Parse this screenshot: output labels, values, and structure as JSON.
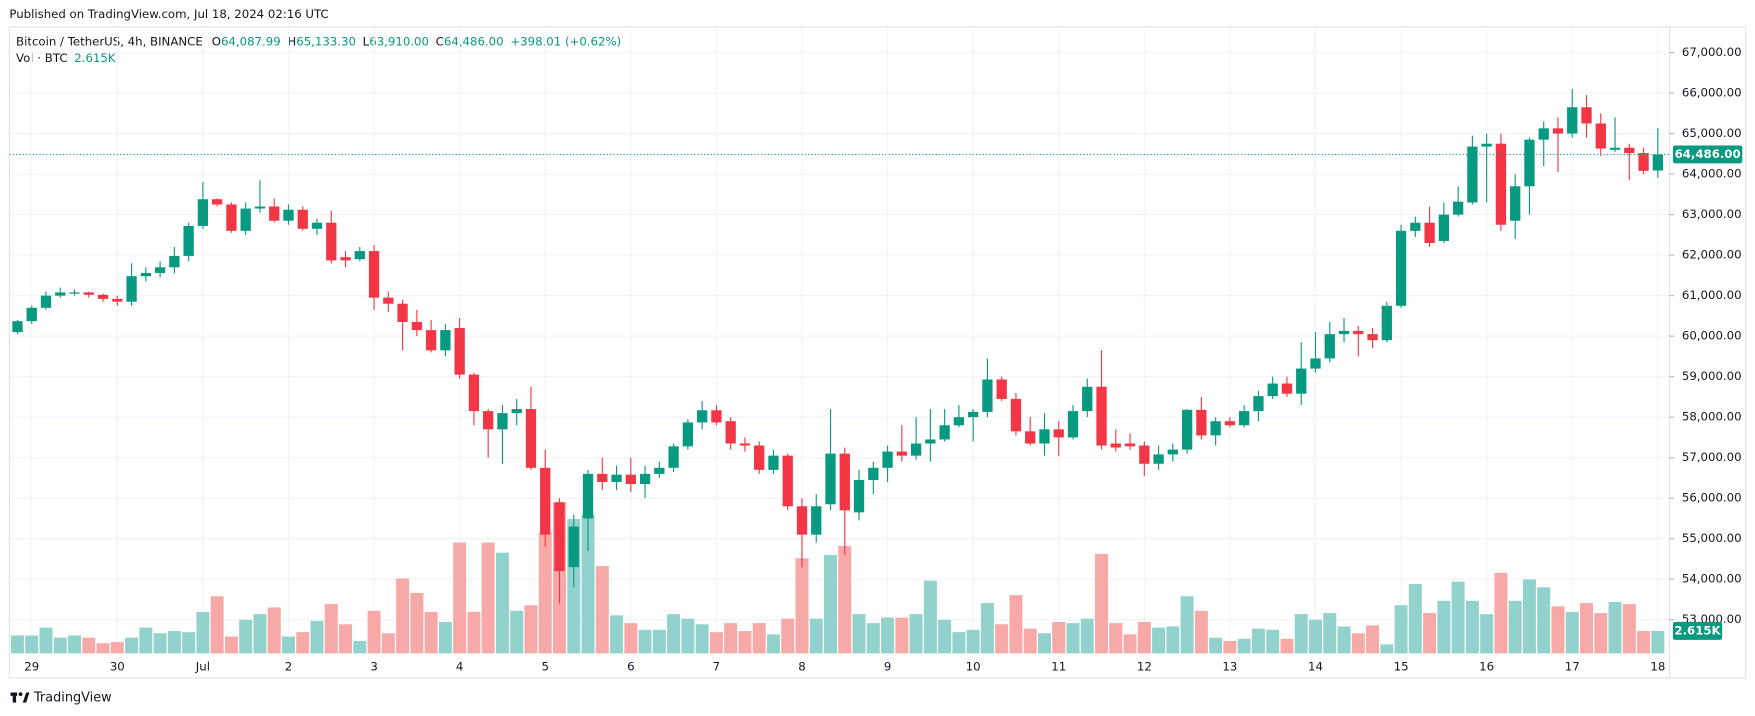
{
  "chart_data": {
    "type": "candlestick",
    "published": "Published on TradingView.com, Jul 18, 2024 02:16 UTC",
    "symbol": "Bitcoin / TetherUS, 4h, BINANCE",
    "ohlc_legend": [
      {
        "key": "O",
        "value": "64,087.99"
      },
      {
        "key": "H",
        "value": "65,133.30"
      },
      {
        "key": "L",
        "value": "63,910.00"
      },
      {
        "key": "C",
        "value": "64,486.00"
      }
    ],
    "change": "+398.01 (+0.62%)",
    "volume_title": "Vol · BTC",
    "volume_label": "2.615K",
    "last_price_label": "64,486.00",
    "brand": "TradingView",
    "categories": [
      null,
      "29",
      null,
      null,
      null,
      null,
      null,
      "30",
      null,
      null,
      null,
      null,
      null,
      "Jul",
      null,
      null,
      null,
      null,
      null,
      "2",
      null,
      null,
      null,
      null,
      null,
      "3",
      null,
      null,
      null,
      null,
      null,
      "4",
      null,
      null,
      null,
      null,
      null,
      "5",
      null,
      null,
      null,
      null,
      null,
      "6",
      null,
      null,
      null,
      null,
      null,
      "7",
      null,
      null,
      null,
      null,
      null,
      "8",
      null,
      null,
      null,
      null,
      null,
      "9",
      null,
      null,
      null,
      null,
      null,
      "10",
      null,
      null,
      null,
      null,
      null,
      "11",
      null,
      null,
      null,
      null,
      null,
      "12",
      null,
      null,
      null,
      null,
      null,
      "13",
      null,
      null,
      null,
      null,
      null,
      "14",
      null,
      null,
      null,
      null,
      null,
      "15",
      null,
      null,
      null,
      null,
      null,
      "16",
      null,
      null,
      null,
      null,
      null,
      "17",
      null,
      null,
      null,
      null,
      null,
      "18"
    ],
    "open": [
      60100,
      60370,
      60700,
      61000,
      61050,
      61080,
      61020,
      60920,
      60850,
      61480,
      61560,
      61700,
      61980,
      62720,
      63380,
      63250,
      62600,
      63150,
      63200,
      62850,
      63120,
      62650,
      62800,
      61950,
      61900,
      62100,
      60950,
      60800,
      60350,
      60150,
      59650,
      60200,
      59050,
      58150,
      57700,
      58100,
      58200,
      56750,
      55900,
      54300,
      55500,
      56600,
      56400,
      56580,
      56350,
      56600,
      56750,
      57280,
      57870,
      58170,
      57900,
      57350,
      57300,
      56700,
      57050,
      55800,
      55100,
      55850,
      57100,
      55650,
      56450,
      56750,
      57150,
      57050,
      57350,
      57450,
      57800,
      58000,
      58130,
      58930,
      58450,
      57650,
      57350,
      57700,
      57500,
      58150,
      58750,
      57350,
      57350,
      57300,
      56850,
      57080,
      57200,
      58180,
      57550,
      57900,
      57800,
      58150,
      58520,
      58830,
      58580,
      59200,
      59450,
      60050,
      60130,
      60050,
      59900,
      60750,
      62600,
      62800,
      62350,
      63000,
      63300,
      64680,
      64750,
      62850,
      63700,
      64850,
      65130,
      65000,
      65650,
      65250,
      64600,
      64650,
      64520,
      64088
    ],
    "high": [
      60400,
      60750,
      61100,
      61200,
      61150,
      61100,
      61050,
      61000,
      61800,
      61700,
      61850,
      62200,
      62800,
      63800,
      63400,
      63300,
      63300,
      63850,
      63400,
      63250,
      63200,
      62900,
      63100,
      62100,
      62200,
      62250,
      61100,
      60900,
      60650,
      60400,
      60300,
      60450,
      59100,
      58200,
      58300,
      58450,
      58750,
      57200,
      56000,
      55600,
      56700,
      57000,
      56800,
      57000,
      56800,
      56900,
      57350,
      57950,
      58400,
      58300,
      58000,
      57500,
      57400,
      57200,
      57100,
      56000,
      56100,
      58200,
      57250,
      56700,
      56900,
      57300,
      57800,
      58000,
      58200,
      58200,
      58300,
      58200,
      59450,
      59000,
      58600,
      58000,
      58100,
      57900,
      58300,
      58950,
      59650,
      57700,
      57600,
      57400,
      57300,
      57350,
      58200,
      58500,
      58000,
      58000,
      58300,
      58650,
      59000,
      59000,
      59850,
      60100,
      60350,
      60450,
      60250,
      60200,
      60850,
      62750,
      62950,
      63200,
      63300,
      63700,
      64950,
      65000,
      65000,
      64000,
      64900,
      65300,
      65400,
      66100,
      65950,
      65500,
      65400,
      64750,
      64650,
      65133
    ],
    "low": [
      60050,
      60300,
      60650,
      60950,
      61000,
      60950,
      60850,
      60750,
      60750,
      61350,
      61450,
      61550,
      61850,
      62650,
      63200,
      62550,
      62500,
      63050,
      62800,
      62750,
      62600,
      62500,
      61800,
      61700,
      61850,
      60650,
      60600,
      59650,
      60000,
      59600,
      59500,
      58950,
      57800,
      57000,
      56850,
      57800,
      56700,
      54800,
      53400,
      53800,
      54700,
      56200,
      56200,
      56150,
      56000,
      56500,
      56650,
      57200,
      57700,
      57800,
      57200,
      57150,
      56600,
      56600,
      55700,
      54300,
      54900,
      55700,
      54600,
      55450,
      56100,
      56400,
      56900,
      56950,
      56900,
      57400,
      57750,
      57400,
      58000,
      58400,
      57550,
      57300,
      57050,
      57050,
      57450,
      58000,
      57200,
      57150,
      57200,
      56550,
      56700,
      56900,
      57100,
      57450,
      57300,
      57750,
      57750,
      57900,
      58450,
      58500,
      58300,
      59100,
      59350,
      59850,
      59500,
      59700,
      59850,
      60700,
      62450,
      62200,
      62300,
      62950,
      63250,
      63300,
      62600,
      62400,
      63000,
      64200,
      64050,
      64900,
      64900,
      64450,
      64550,
      63850,
      64000,
      63910
    ],
    "close": [
      60370,
      60700,
      61000,
      61080,
      61080,
      61020,
      60920,
      60850,
      61480,
      61560,
      61700,
      61980,
      62720,
      63380,
      63250,
      62600,
      63150,
      63200,
      62850,
      63120,
      62650,
      62800,
      61870,
      61870,
      62100,
      60950,
      60800,
      60350,
      60150,
      59650,
      60150,
      59050,
      58150,
      57700,
      58100,
      58200,
      56750,
      55100,
      54200,
      55300,
      56600,
      56400,
      56580,
      56350,
      56600,
      56750,
      57280,
      57870,
      58170,
      57870,
      57350,
      57300,
      56700,
      57050,
      55800,
      55100,
      55800,
      57100,
      55700,
      56450,
      56750,
      57150,
      57050,
      57350,
      57450,
      57800,
      58000,
      58130,
      58930,
      58450,
      57650,
      57350,
      57700,
      57500,
      58150,
      58750,
      57300,
      57250,
      57280,
      56850,
      57080,
      57200,
      58180,
      57550,
      57900,
      57800,
      58150,
      58520,
      58830,
      58580,
      59200,
      59450,
      60050,
      60130,
      60050,
      59900,
      60750,
      62600,
      62800,
      62300,
      63000,
      63320,
      64680,
      64750,
      62750,
      63700,
      64850,
      65130,
      65000,
      65650,
      65250,
      64630,
      64650,
      64520,
      64080,
      64486
    ],
    "volume": [
      2090,
      2090,
      3010,
      1830,
      2090,
      1830,
      1180,
      1310,
      1830,
      3010,
      2350,
      2610,
      2480,
      4840,
      6670,
      1960,
      3920,
      4580,
      5360,
      1960,
      2480,
      3790,
      5750,
      3400,
      1440,
      4970,
      2350,
      8760,
      7060,
      4840,
      3660,
      12940,
      4840,
      12940,
      11760,
      4970,
      5620,
      14120,
      17650,
      15690,
      16210,
      10200,
      4440,
      3530,
      2750,
      2750,
      4580,
      4050,
      3400,
      2480,
      3530,
      2610,
      3530,
      2220,
      4050,
      11110,
      4050,
      11500,
      12550,
      4580,
      3530,
      4180,
      4180,
      4580,
      8500,
      3920,
      2480,
      2750,
      5880,
      3400,
      6800,
      2880,
      2350,
      3660,
      3530,
      4050,
      11630,
      3530,
      2220,
      3660,
      3010,
      3140,
      6670,
      4970,
      1830,
      1440,
      1700,
      2880,
      2750,
      1700,
      4580,
      3920,
      4710,
      3140,
      2350,
      3270,
      1050,
      5620,
      8100,
      4710,
      6140,
      8370,
      6140,
      4580,
      9410,
      6140,
      8630,
      7710,
      5490,
      4840,
      5880,
      4710,
      6010,
      5750,
      2610,
      2615
    ],
    "up_color": "#089981",
    "down_color": "#f23645",
    "volume_up_color": "#92d2cc",
    "volume_down_color": "#f7a9a7",
    "ylim": [
      51590,
      67635
    ],
    "yticks": [
      {
        "value": 53000,
        "label": "53,000.00"
      },
      {
        "value": 54000,
        "label": "54,000.00"
      },
      {
        "value": 55000,
        "label": "55,000.00"
      },
      {
        "value": 56000,
        "label": "56,000.00"
      },
      {
        "value": 57000,
        "label": "57,000.00"
      },
      {
        "value": 58000,
        "label": "58,000.00"
      },
      {
        "value": 59000,
        "label": "59,000.00"
      },
      {
        "value": 60000,
        "label": "60,000.00"
      },
      {
        "value": 61000,
        "label": "61,000.00"
      },
      {
        "value": 62000,
        "label": "62,000.00"
      },
      {
        "value": 63000,
        "label": "63,000.00"
      },
      {
        "value": 64000,
        "label": "64,000.00"
      },
      {
        "value": 65000,
        "label": "65,000.00"
      },
      {
        "value": 66000,
        "label": "66,000.00"
      },
      {
        "value": 67000,
        "label": "67,000.00"
      }
    ],
    "grid": true
  }
}
